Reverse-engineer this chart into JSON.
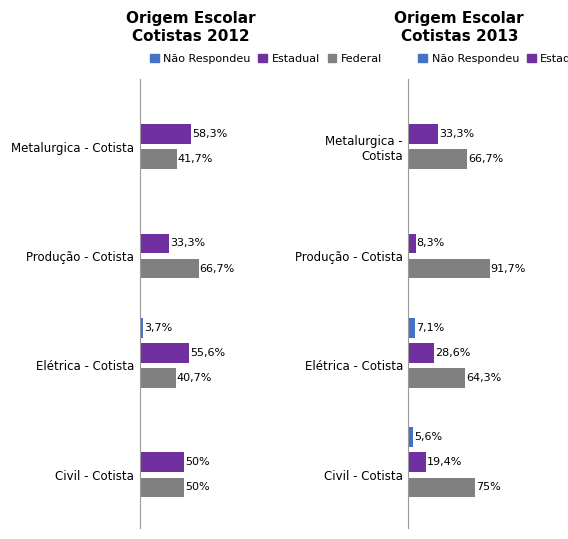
{
  "title_2012": "Origem Escolar\nCotistas 2012",
  "title_2013": "Origem Escolar\nCotistas 2013",
  "categories_2012": [
    "Metalurgica - Cotista",
    "Produção - Cotista",
    "Elétrica - Cotista",
    "Civil - Cotista"
  ],
  "categories_2013_line1": [
    "Metalurgica -\nCotista",
    "Produção - Cotista",
    "Elétrica - Cotista",
    "Civil - Cotista"
  ],
  "data_2012": {
    "nao_respondeu": [
      0,
      0,
      3.7,
      0
    ],
    "estadual": [
      58.3,
      33.3,
      55.6,
      50.0
    ],
    "federal": [
      41.7,
      66.7,
      40.7,
      50.0
    ]
  },
  "data_2013": {
    "nao_respondeu": [
      0,
      0,
      7.1,
      5.6
    ],
    "estadual": [
      33.3,
      8.3,
      28.6,
      19.4
    ],
    "federal": [
      66.7,
      91.7,
      64.3,
      75.0
    ]
  },
  "labels_2012": {
    "nao_respondeu": [
      "",
      "",
      "3,7%",
      ""
    ],
    "estadual": [
      "58,3%",
      "33,3%",
      "55,6%",
      "50%"
    ],
    "federal": [
      "41,7%",
      "66,7%",
      "40,7%",
      "50%"
    ]
  },
  "labels_2013": {
    "nao_respondeu": [
      "",
      "",
      "7,1%",
      "5,6%"
    ],
    "estadual": [
      "33,3%",
      "8,3%",
      "28,6%",
      "19,4%"
    ],
    "federal": [
      "66,7%",
      "91,7%",
      "64,3%",
      "75%"
    ]
  },
  "color_nao": "#4472C4",
  "color_estadual": "#7030A0",
  "color_federal": "#808080",
  "background": "#FFFFFF",
  "title_fontsize": 11,
  "label_fontsize": 8,
  "tick_fontsize": 8.5,
  "legend_fontsize": 8
}
